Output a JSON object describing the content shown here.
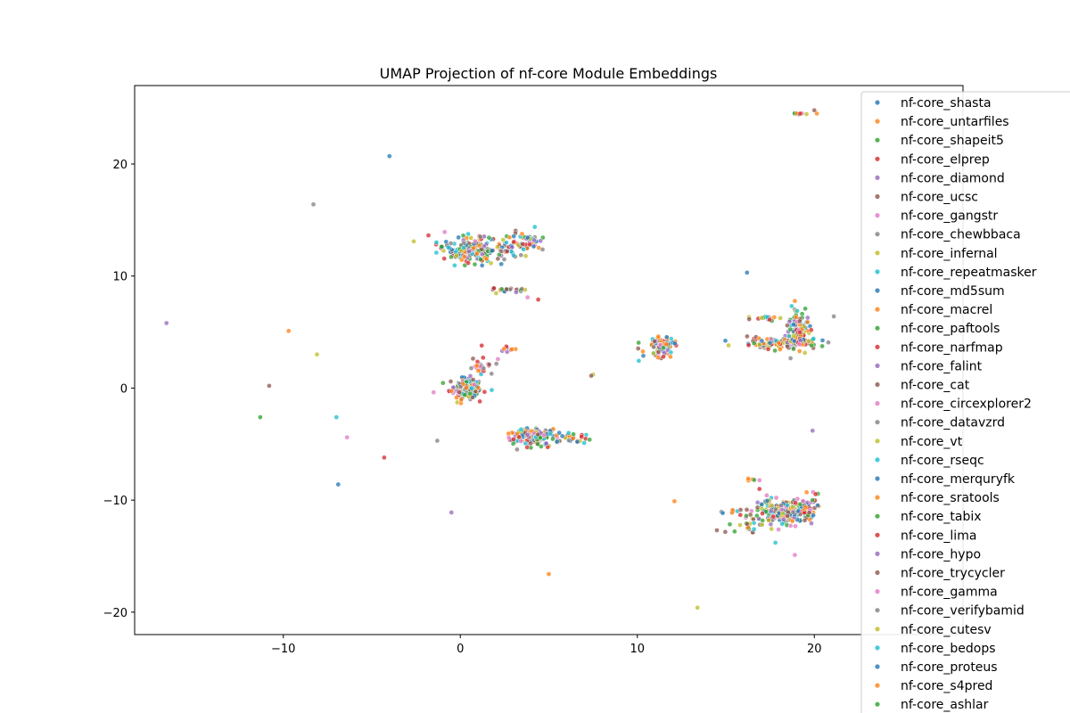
{
  "chart_data": {
    "type": "scatter",
    "title": "UMAP Projection of nf-core Module Embeddings",
    "xlabel": "",
    "ylabel": "",
    "xlim": [
      -18.4,
      28.4
    ],
    "ylim": [
      -22.0,
      27.0
    ],
    "x_ticks": [
      -10,
      0,
      10,
      20
    ],
    "y_ticks": [
      -20,
      -10,
      0,
      10,
      20
    ],
    "x_tick_labels": [
      "−10",
      "0",
      "10",
      "20"
    ],
    "y_tick_labels": [
      "−20",
      "−10",
      "0",
      "10",
      "20"
    ],
    "grid": false,
    "legend_placement": "top-right, extending outside the axes",
    "legend": [
      "nf-core_shasta",
      "nf-core_untarfiles",
      "nf-core_shapeit5",
      "nf-core_elprep",
      "nf-core_diamond",
      "nf-core_ucsc",
      "nf-core_gangstr",
      "nf-core_chewbbaca",
      "nf-core_infernal",
      "nf-core_repeatmasker",
      "nf-core_md5sum",
      "nf-core_macrel",
      "nf-core_paftools",
      "nf-core_narfmap",
      "nf-core_falint",
      "nf-core_cat",
      "nf-core_circexplorer2",
      "nf-core_datavzrd",
      "nf-core_vt",
      "nf-core_rseqc",
      "nf-core_merquryfk",
      "nf-core_sratools",
      "nf-core_tabix",
      "nf-core_lima",
      "nf-core_hypo",
      "nf-core_trycycler",
      "nf-core_gamma",
      "nf-core_verifybamid",
      "nf-core_cutesv",
      "nf-core_bedops",
      "nf-core_proteus",
      "nf-core_s4pred",
      "nf-core_ashlar"
    ],
    "colors": [
      "#1f77b4",
      "#ff7f0e",
      "#2ca02c",
      "#d62728",
      "#9467bd",
      "#8c564b",
      "#e377c2",
      "#7f7f7f",
      "#bcbd22",
      "#17becf"
    ],
    "clusters": [
      {
        "x": 0.5,
        "y": 12.4,
        "sx": 0.9,
        "sy": 0.6,
        "n": 170
      },
      {
        "x": 3.6,
        "y": 13.0,
        "sx": 0.6,
        "sy": 0.5,
        "n": 55
      },
      {
        "x": 2.0,
        "y": 12.2,
        "sx": 0.7,
        "sy": 0.4,
        "n": 20
      },
      {
        "x": 2.5,
        "y": 8.7,
        "sx": 0.5,
        "sy": 0.2,
        "n": 22
      },
      {
        "x": 0.3,
        "y": 0.0,
        "sx": 0.45,
        "sy": 0.45,
        "n": 160
      },
      {
        "x": 1.1,
        "y": 1.9,
        "sx": 0.4,
        "sy": 0.6,
        "n": 28
      },
      {
        "x": 2.6,
        "y": 3.5,
        "sx": 0.25,
        "sy": 0.15,
        "n": 10
      },
      {
        "x": 4.0,
        "y": -4.3,
        "sx": 0.7,
        "sy": 0.35,
        "n": 170
      },
      {
        "x": 6.2,
        "y": -4.4,
        "sx": 0.5,
        "sy": 0.25,
        "n": 24
      },
      {
        "x": 11.4,
        "y": 3.8,
        "sx": 0.35,
        "sy": 0.35,
        "n": 90
      },
      {
        "x": 11.0,
        "y": 3.0,
        "sx": 0.6,
        "sy": 0.3,
        "n": 10
      },
      {
        "x": 18.3,
        "y": 4.0,
        "sx": 1.0,
        "sy": 0.25,
        "n": 130
      },
      {
        "x": 19.1,
        "y": 5.3,
        "sx": 0.35,
        "sy": 0.9,
        "n": 90
      },
      {
        "x": 17.5,
        "y": 6.2,
        "sx": 0.5,
        "sy": 0.15,
        "n": 16
      },
      {
        "x": 18.5,
        "y": -11.0,
        "sx": 0.8,
        "sy": 0.5,
        "n": 210
      },
      {
        "x": 16.3,
        "y": -12.0,
        "sx": 0.6,
        "sy": 0.6,
        "n": 30
      },
      {
        "x": 15.6,
        "y": -11.0,
        "sx": 0.4,
        "sy": 0.15,
        "n": 8
      },
      {
        "x": 16.5,
        "y": -8.2,
        "sx": 0.2,
        "sy": 0.1,
        "n": 5
      },
      {
        "x": 19.9,
        "y": -10.3,
        "sx": 0.3,
        "sy": 0.5,
        "n": 10
      },
      {
        "x": 19.2,
        "y": 24.5,
        "sx": 0.3,
        "sy": 0.05,
        "n": 10
      }
    ],
    "outliers": [
      [
        -4.0,
        20.7
      ],
      [
        -8.3,
        16.4
      ],
      [
        -16.6,
        5.8
      ],
      [
        -9.7,
        5.1
      ],
      [
        -8.1,
        3.0
      ],
      [
        -10.8,
        0.2
      ],
      [
        -11.3,
        -2.6
      ],
      [
        -7.0,
        -2.6
      ],
      [
        -6.4,
        -4.4
      ],
      [
        -4.3,
        -6.2
      ],
      [
        -6.9,
        -8.6
      ],
      [
        -1.3,
        -4.7
      ],
      [
        -0.5,
        -11.1
      ],
      [
        5.0,
        -16.6
      ],
      [
        7.5,
        1.2
      ],
      [
        7.4,
        1.1
      ],
      [
        7.3,
        -4.6
      ],
      [
        7.0,
        -4.9
      ],
      [
        3.8,
        8.1
      ],
      [
        4.4,
        7.9
      ],
      [
        16.2,
        10.3
      ],
      [
        21.1,
        6.4
      ],
      [
        19.9,
        -3.8
      ],
      [
        12.1,
        -10.1
      ],
      [
        13.4,
        -19.6
      ],
      [
        20.0,
        24.8
      ],
      [
        15.5,
        -12.8
      ],
      [
        17.8,
        -13.8
      ],
      [
        18.9,
        -14.9
      ],
      [
        16.9,
        -9.0
      ]
    ]
  }
}
